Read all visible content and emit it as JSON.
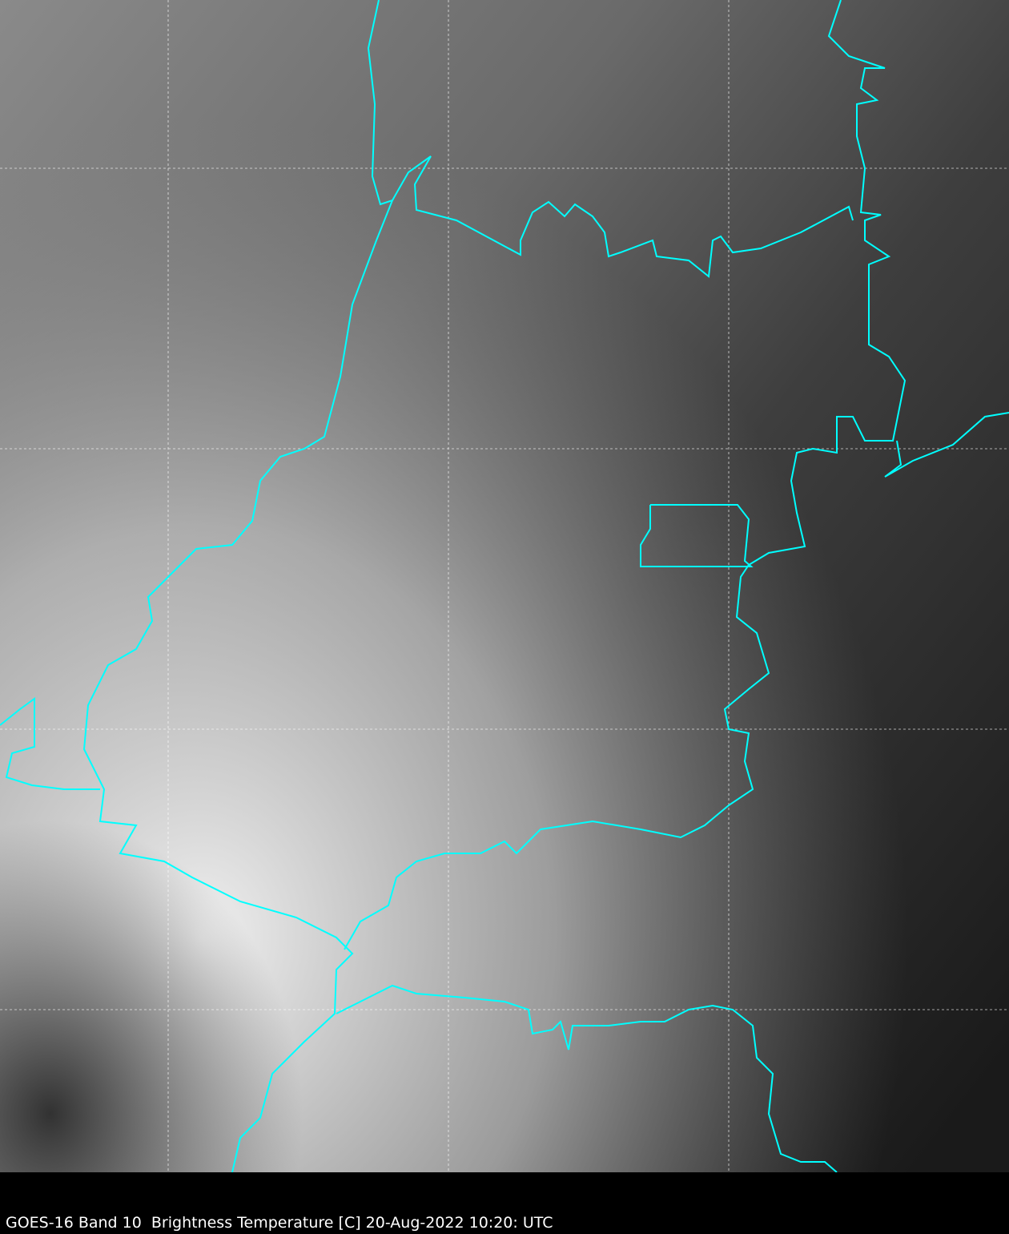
{
  "caption": "GOES-16 Band 10  Brightness Temperature [C] 20-Aug-2022 10:20: UTC",
  "map": {
    "product": "GOES-16 Band 10 Brightness Temperature",
    "colormap": "grayscale",
    "border_color": "#00FFFF",
    "grid_color": "#FFFFFF",
    "grid_style": "dashed"
  }
}
